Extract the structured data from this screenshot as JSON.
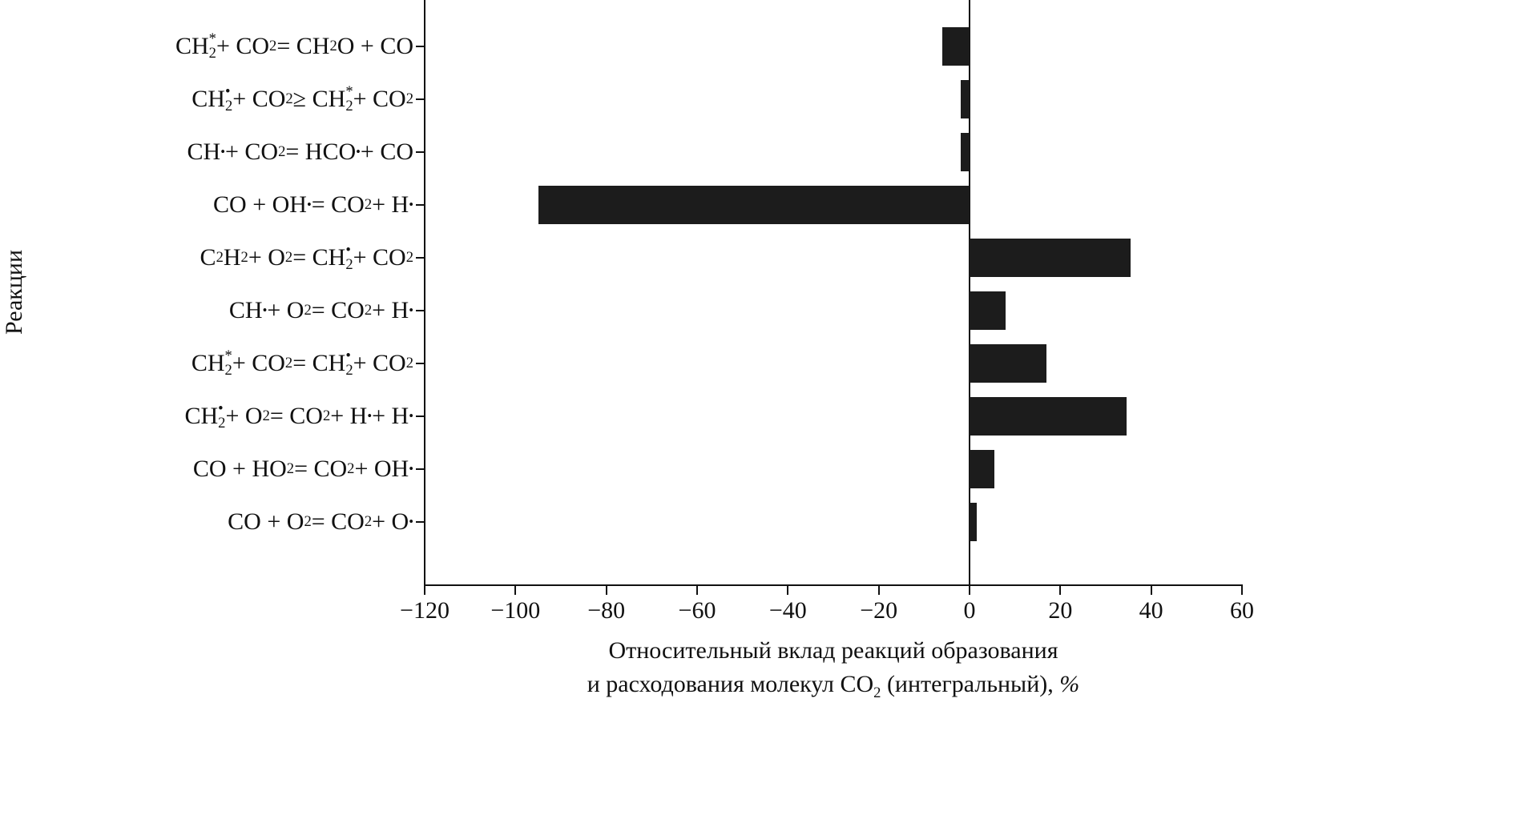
{
  "chart_data": {
    "type": "bar",
    "orientation": "horizontal",
    "ylabel": "Реакции",
    "xlabel": "Относительный вклад реакций образования и расходования молекул CO2 (интегральный), %",
    "xlabel_lines_html": [
      "Относительный вклад реакций образования",
      "и расходования молекул CO<sub>2</sub> (интегральный), <i>%</i>"
    ],
    "xlim": [
      -120,
      60
    ],
    "xticks": [
      -120,
      -100,
      -80,
      -60,
      -40,
      -20,
      0,
      20,
      40,
      60
    ],
    "xtick_labels": [
      "−120",
      "−100",
      "−80",
      "−60",
      "−40",
      "−20",
      "0",
      "20",
      "40",
      "60"
    ],
    "grid": false,
    "legend": "none",
    "bar_color": "#1c1c1c",
    "categories": [
      "CH2* + CO2 = CH2O + CO",
      "CH2• + CO2 ≥ CH2* + CO2",
      "CH• + CO2 = HCO• + CO",
      "CO + OH• = CO2 + H•",
      "C2H2 + O2 = CH2• + CO2",
      "CH• + O2 = CO2 + H•",
      "CH2* + CO2 = CH2• + CO2",
      "CH2• + O2 = CO2 + H• + H•",
      "CO + HO2 = CO2 + OH•",
      "CO + O2 = CO2 + O•"
    ],
    "categories_html": [
      "CH<span class='ss'><span class='t'>*</span><span class='b'>2</span></span> + CO<sub>2</sub> = CH<sub>2</sub>O + CO",
      "CH<span class='ss'><span class='t'>•</span><span class='b'>2</span></span> + CO<sub>2</sub> ≥ CH<span class='ss'><span class='t'>*</span><span class='b'>2</span></span> + CO<sub>2</sub>",
      "CH<sup class='dot'>•</sup> + CO<sub>2</sub> = HCO<sup class='dot'>•</sup> + CO",
      "CO + OH<sup class='dot'>•</sup> = CO<sub>2</sub> + H<sup class='dot'>•</sup>",
      "C<sub>2</sub>H<sub>2</sub> + O<sub>2</sub> = CH<span class='ss'><span class='t'>•</span><span class='b'>2</span></span> + CO<sub>2</sub>",
      "CH<sup class='dot'>•</sup> + O<sub>2</sub> = CO<sub>2</sub> + H<sup class='dot'>•</sup>",
      "CH<span class='ss'><span class='t'>*</span><span class='b'>2</span></span> + CO<sub>2</sub> = CH<span class='ss'><span class='t'>•</span><span class='b'>2</span></span> + CO<sub>2</sub>",
      "CH<span class='ss'><span class='t'>•</span><span class='b'>2</span></span> + O<sub>2</sub> = CO<sub>2</sub> + H<sup class='dot'>•</sup> + H<sup class='dot'>•</sup>",
      "CO + HO<sub>2</sub> = CO<sub>2</sub> + OH<sup class='dot'>•</sup>",
      "CO + O<sub>2</sub> = CO<sub>2</sub> + O<sup class='dot'>•</sup>"
    ],
    "values": [
      -6,
      -2,
      -2,
      -95,
      35.5,
      8,
      17,
      34.5,
      5.5,
      1.5
    ]
  }
}
